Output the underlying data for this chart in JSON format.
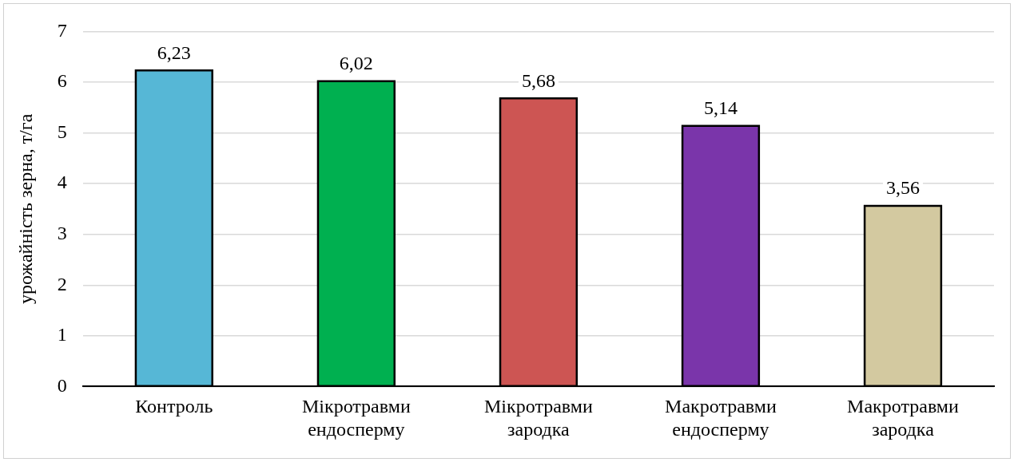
{
  "chart_data": {
    "type": "bar",
    "ylabel": "урожайність зерна, т/га",
    "categories": [
      "Контроль",
      "Мікротравми ендосперму",
      "Мікротравми зародка",
      "Макротравми ендосперму",
      "Макротравми зародка"
    ],
    "values": [
      6.23,
      6.02,
      5.68,
      5.14,
      3.56
    ],
    "value_labels": [
      "6,23",
      "6,02",
      "5,68",
      "5,14",
      "3,56"
    ],
    "colors": [
      "#56b7d6",
      "#00b050",
      "#cd5553",
      "#7a35aa",
      "#d3c9a0"
    ],
    "ylim": [
      0,
      7
    ],
    "yticks": [
      0,
      1,
      2,
      3,
      4,
      5,
      6,
      7
    ],
    "grid": "y",
    "legend": false
  }
}
